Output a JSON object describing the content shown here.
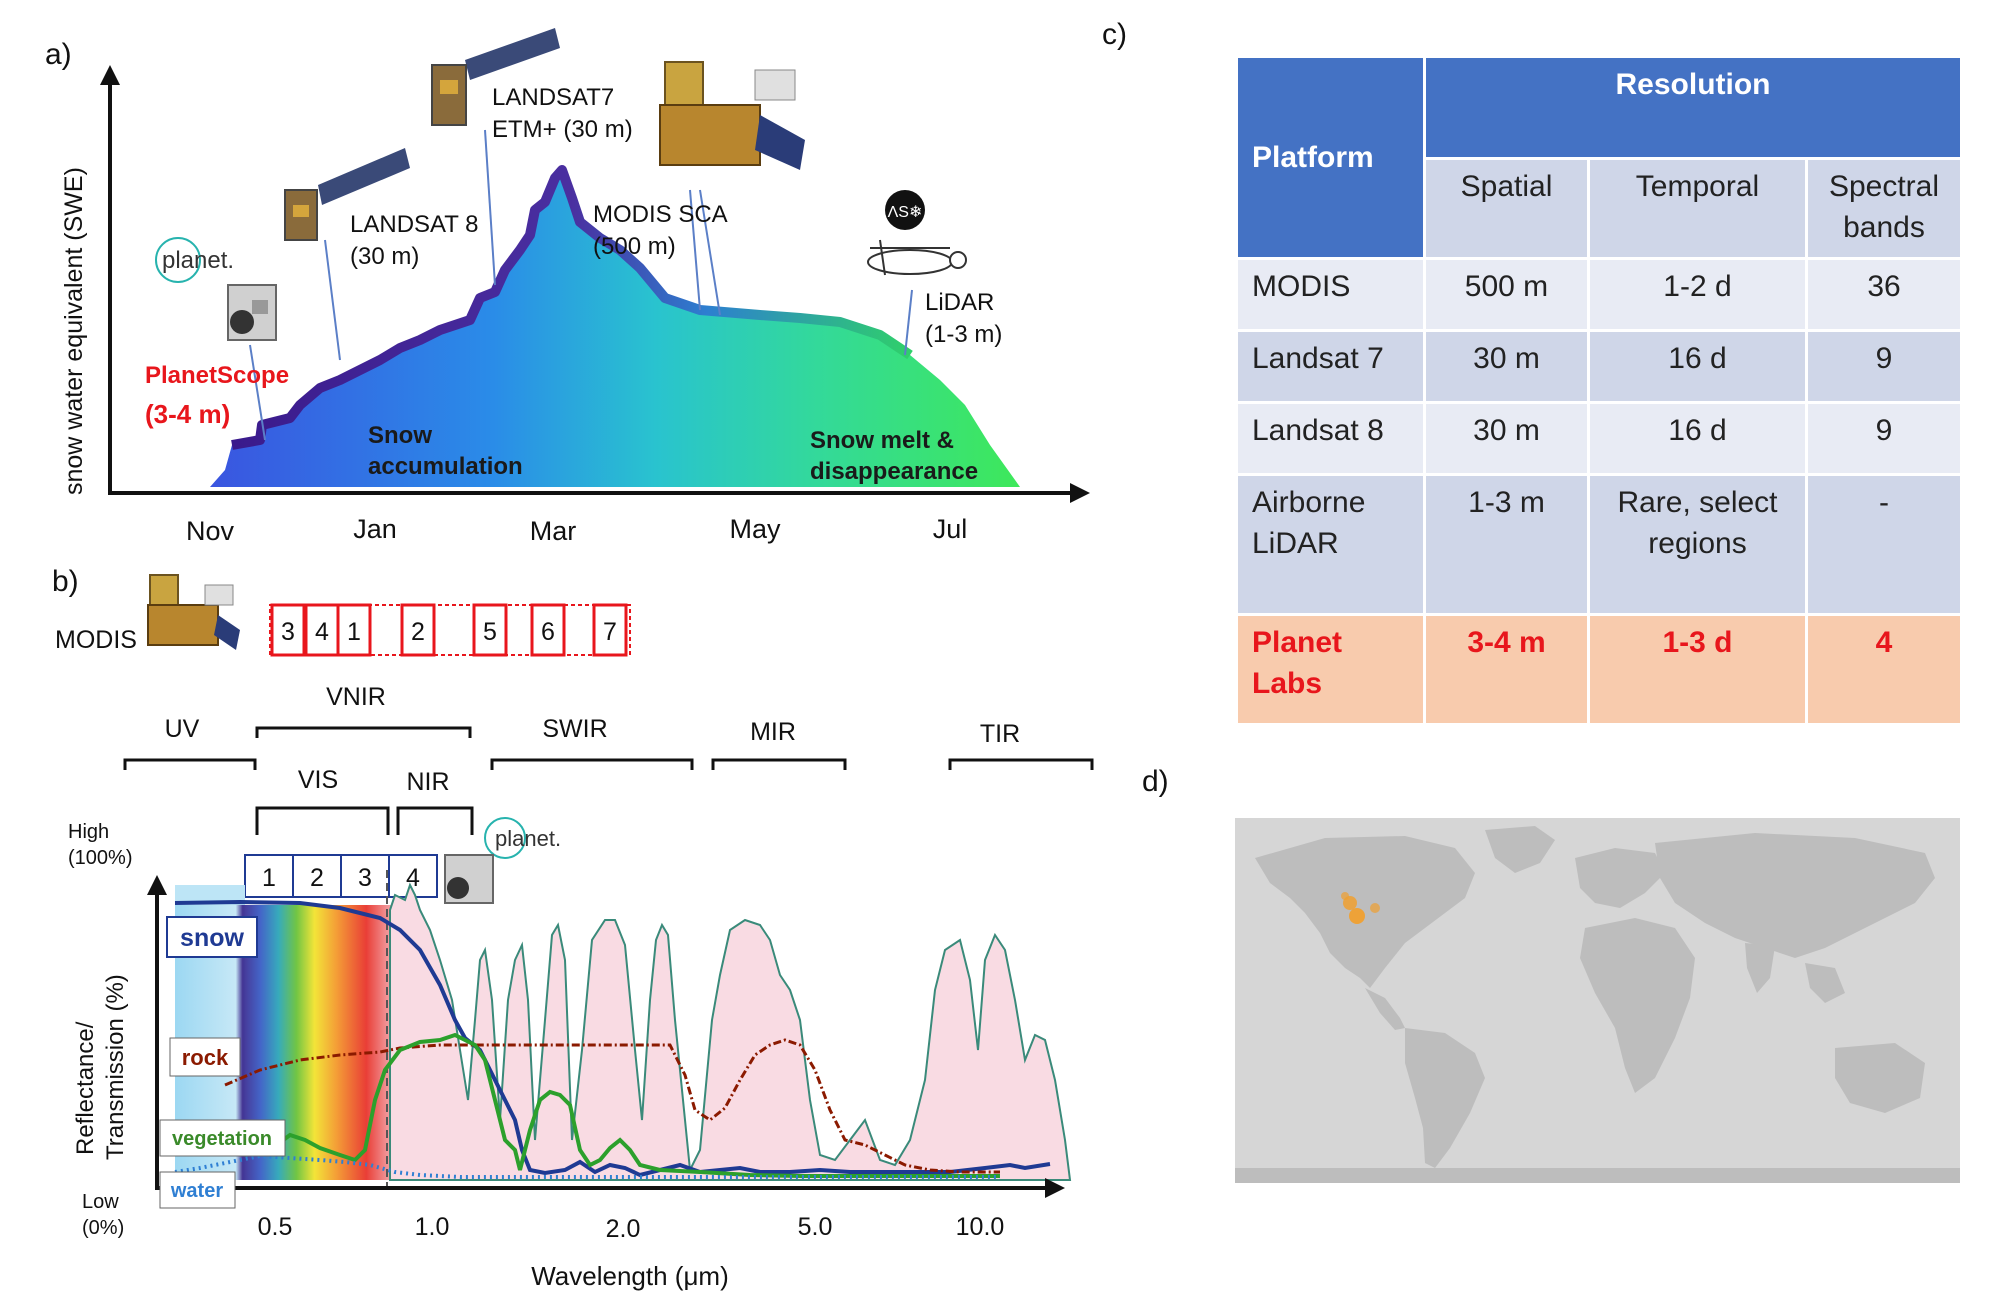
{
  "panel_labels": {
    "a": "a)",
    "b": "b)",
    "c": "c)",
    "d": "d)"
  },
  "panel_a": {
    "y_axis_label": "snow water equivalent (SWE)",
    "months": [
      "Nov",
      "Jan",
      "Mar",
      "May",
      "Jul"
    ],
    "phases": {
      "accum_1": "Snow",
      "accum_2": "accumulation",
      "melt_1": "Snow melt &",
      "melt_2": "disappearance"
    },
    "platforms": {
      "planet_logo": "planet.",
      "planetscope": "PlanetScope",
      "planetscope_res": "(3-4 m)",
      "landsat8": "LANDSAT 8",
      "landsat8_res": "(30 m)",
      "landsat7": "LANDSAT7",
      "landsat7_res": "ETM+  (30 m)",
      "modis": "MODIS SCA",
      "modis_res": "(500 m)",
      "lidar": "LiDAR",
      "lidar_res": "(1-3 m)",
      "aso_logo": "ΛS❄"
    }
  },
  "panel_b": {
    "modis_label": "MODIS",
    "modis_bands": [
      "3",
      "4",
      "1",
      "2",
      "5",
      "6",
      "7"
    ],
    "regions": {
      "uv": "UV",
      "vnir": "VNIR",
      "swir": "SWIR",
      "mir": "MIR",
      "tir": "TIR",
      "vis": "VIS",
      "nir": "NIR"
    },
    "planet_logo": "planet.",
    "planet_bands": [
      "1",
      "2",
      "3",
      "4"
    ],
    "y_high": "High",
    "y_high_pct": "(100%)",
    "y_low": "Low",
    "y_low_pct": "(0%)",
    "y_axis_label_1": "Reflectance/",
    "y_axis_label_2": "Transmission (%)",
    "x_axis_label": "Wavelength (μm)",
    "x_ticks": [
      "0.5",
      "1.0",
      "2.0",
      "5.0",
      "10.0"
    ],
    "legend": {
      "snow": "snow",
      "rock": "rock",
      "vegetation": "vegetation",
      "water": "water"
    },
    "colors": {
      "snow": "#1f3a93",
      "rock": "#8b1a00",
      "vegetation": "#2ca02c",
      "water": "#2f7fd3",
      "atmosphere": "#f9dbe3"
    }
  },
  "table": {
    "platform_header": "Platform",
    "resolution_header": "Resolution",
    "columns": [
      "Spatial",
      "Temporal",
      "Spectral bands"
    ],
    "rows": [
      {
        "platform": "MODIS",
        "spatial": "500 m",
        "temporal": "1-2 d",
        "bands": "36"
      },
      {
        "platform": "Landsat 7",
        "spatial": "30 m",
        "temporal": "16 d",
        "bands": "9"
      },
      {
        "platform": "Landsat 8",
        "spatial": "30 m",
        "temporal": "16 d",
        "bands": "9"
      },
      {
        "platform": "Airborne LiDAR",
        "spatial": "1-3 m",
        "temporal": "Rare, select regions",
        "bands": "-"
      },
      {
        "platform": "Planet Labs",
        "spatial": "3-4 m",
        "temporal": "1-3 d",
        "bands": "4"
      }
    ],
    "colors": {
      "header": "#4472c4",
      "row_a": "#cfd6e8",
      "row_b": "#e8ebf4",
      "planet": "#f8cbad",
      "planet_text": "#e8161c"
    }
  },
  "map": {
    "land_color": "#bdbdbd",
    "ocean_color": "#d6d6d6",
    "marker_color": "#f0a030"
  }
}
